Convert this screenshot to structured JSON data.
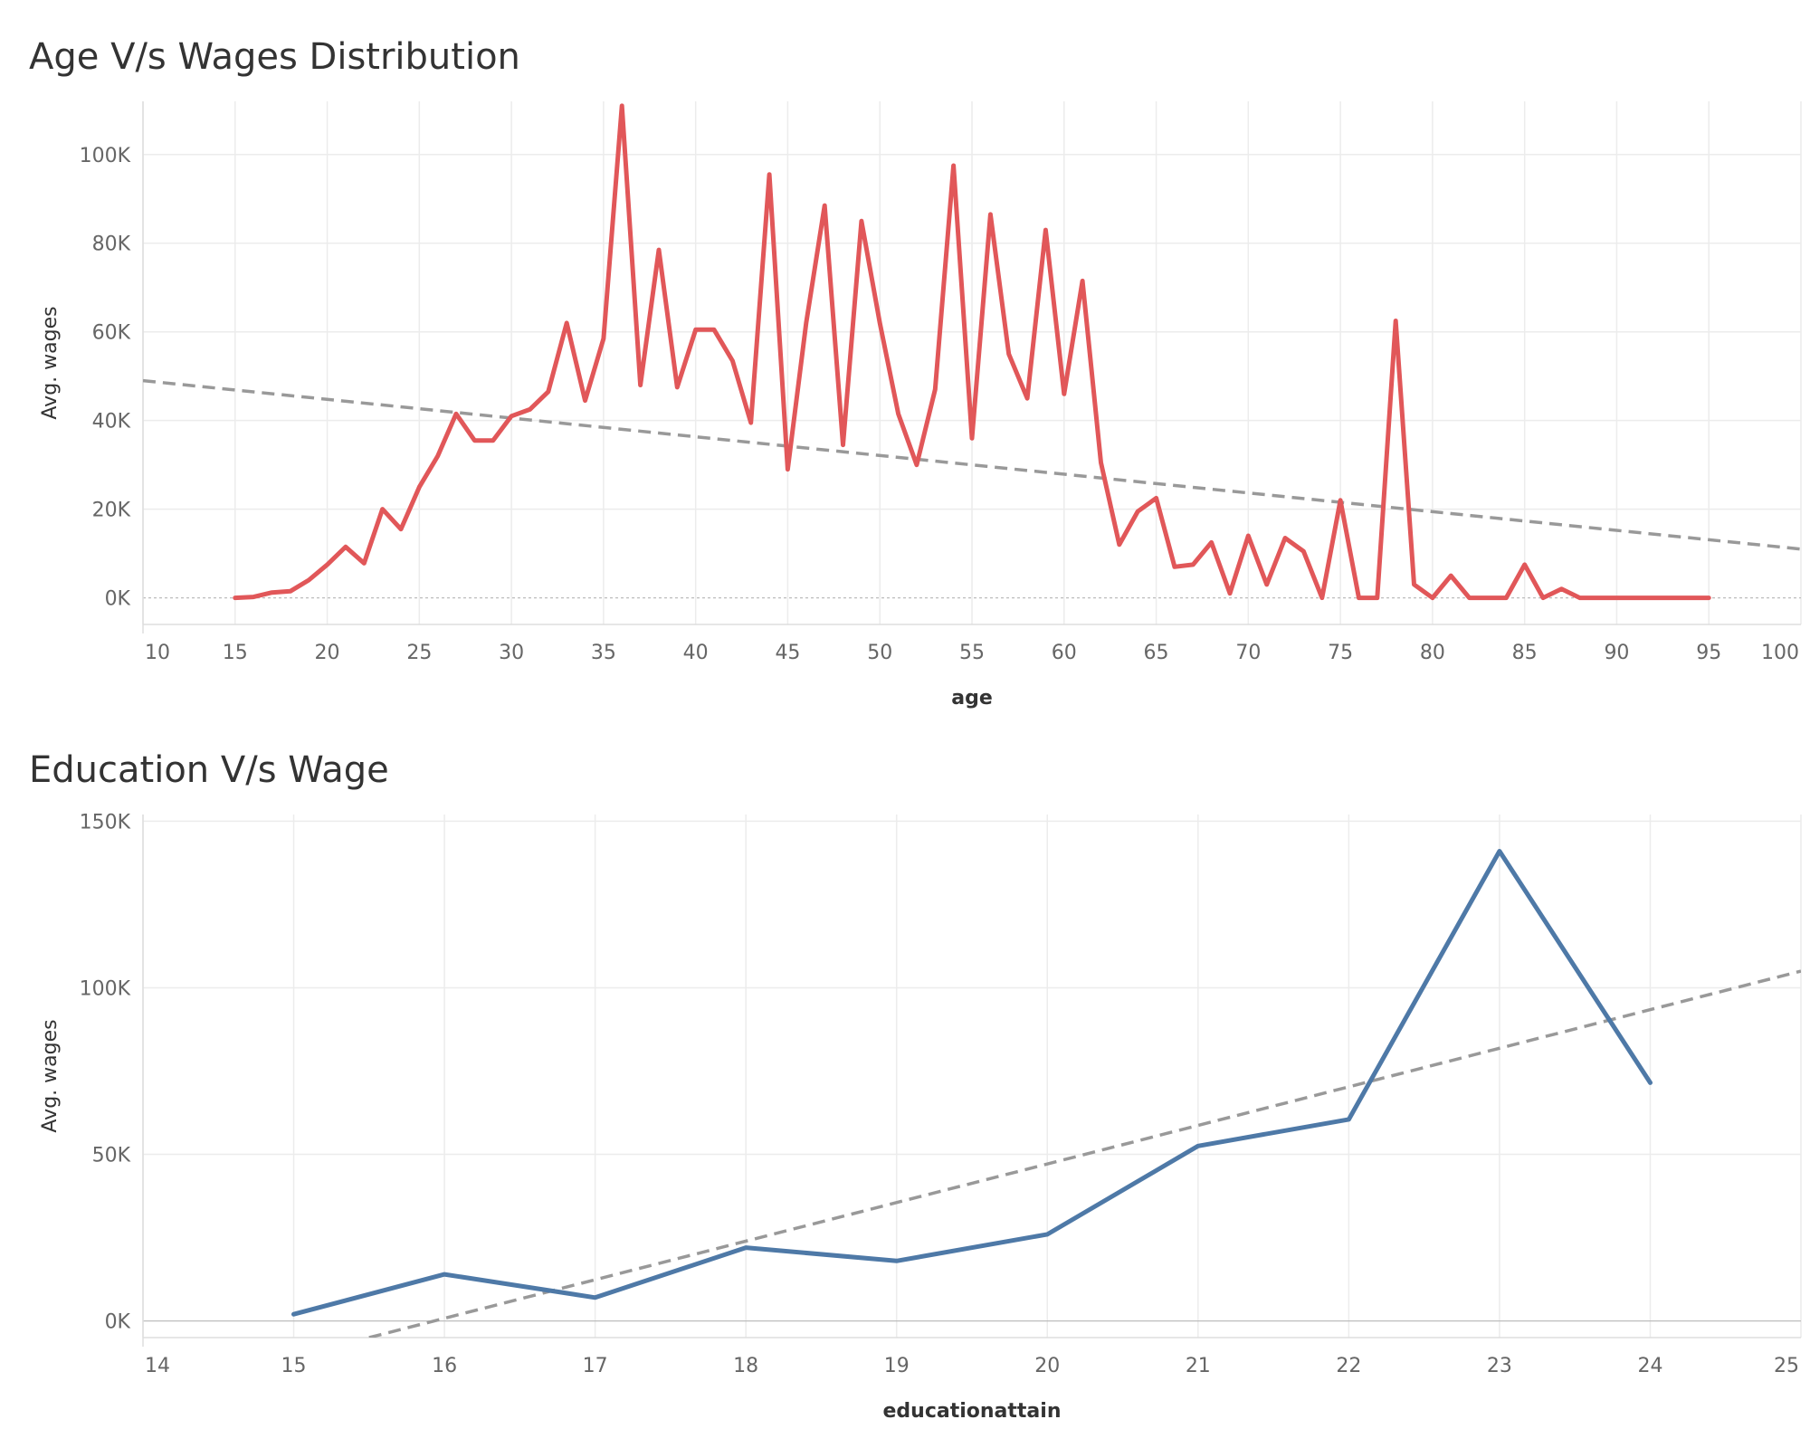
{
  "chart_data": [
    {
      "type": "line",
      "title": "Age V/s Wages Distribution",
      "xlabel": "age",
      "ylabel": "Avg. wages",
      "xlim": [
        10,
        100
      ],
      "ylim": [
        -6000,
        112000
      ],
      "x_ticks": [
        10,
        15,
        20,
        25,
        30,
        35,
        40,
        45,
        50,
        55,
        60,
        65,
        70,
        75,
        80,
        85,
        90,
        95,
        100
      ],
      "y_ticks": [
        0,
        20000,
        40000,
        60000,
        80000,
        100000
      ],
      "y_tick_labels": [
        "0K",
        "20K",
        "40K",
        "60K",
        "80K",
        "100K"
      ],
      "grid": true,
      "series": [
        {
          "color": "#e15759",
          "x": [
            15,
            16,
            17,
            18,
            19,
            20,
            21,
            22,
            23,
            24,
            25,
            26,
            27,
            28,
            29,
            30,
            31,
            32,
            33,
            34,
            35,
            36,
            37,
            38,
            39,
            40,
            41,
            42,
            43,
            44,
            45,
            46,
            47,
            48,
            49,
            50,
            51,
            52,
            53,
            54,
            55,
            56,
            57,
            58,
            59,
            60,
            61,
            62,
            63,
            64,
            65,
            66,
            67,
            68,
            69,
            70,
            71,
            72,
            73,
            74,
            75,
            76,
            77,
            78,
            79,
            80,
            81,
            82,
            83,
            84,
            85,
            86,
            87,
            88,
            89,
            90,
            91,
            92,
            93,
            94,
            95
          ],
          "values": [
            0,
            200,
            1200,
            1500,
            4000,
            7500,
            11500,
            7800,
            20000,
            15500,
            25000,
            32000,
            41500,
            35500,
            35500,
            41000,
            42500,
            46500,
            62000,
            44500,
            58500,
            111000,
            48000,
            78500,
            47500,
            60500,
            60500,
            53500,
            39500,
            95500,
            29000,
            62000,
            88500,
            34500,
            85000,
            62000,
            41500,
            30000,
            47000,
            97500,
            36000,
            86500,
            55000,
            45000,
            83000,
            46000,
            71500,
            30500,
            12000,
            19500,
            22500,
            7000,
            7500,
            12500,
            1000,
            14000,
            3000,
            13500,
            10500,
            0,
            22000,
            0,
            0,
            62500,
            3000,
            0,
            5000,
            0,
            0,
            0,
            7500,
            0,
            2000,
            0,
            0,
            0,
            0,
            0,
            0,
            0,
            0
          ]
        }
      ],
      "trend_line": {
        "x": [
          10,
          100
        ],
        "y": [
          49000,
          11000
        ],
        "color": "#999999",
        "style": "dashed"
      }
    },
    {
      "type": "line",
      "title": "Education V/s Wage",
      "xlabel": "educationattain",
      "ylabel": "Avg. wages",
      "xlim": [
        14,
        25
      ],
      "ylim": [
        -5000,
        152000
      ],
      "x_ticks": [
        14,
        15,
        16,
        17,
        18,
        19,
        20,
        21,
        22,
        23,
        24,
        25
      ],
      "y_ticks": [
        0,
        50000,
        100000,
        150000
      ],
      "y_tick_labels": [
        "0K",
        "50K",
        "100K",
        "150K"
      ],
      "grid": true,
      "series": [
        {
          "color": "#4e79a7",
          "x": [
            15,
            16,
            17,
            18,
            19,
            20,
            21,
            22,
            23,
            24
          ],
          "values": [
            2000,
            14000,
            7000,
            22000,
            18000,
            26000,
            52500,
            60500,
            141000,
            71500
          ]
        }
      ],
      "trend_line": {
        "x": [
          15.5,
          25
        ],
        "y": [
          -5000,
          105000
        ],
        "color": "#999999",
        "style": "dashed"
      }
    }
  ]
}
